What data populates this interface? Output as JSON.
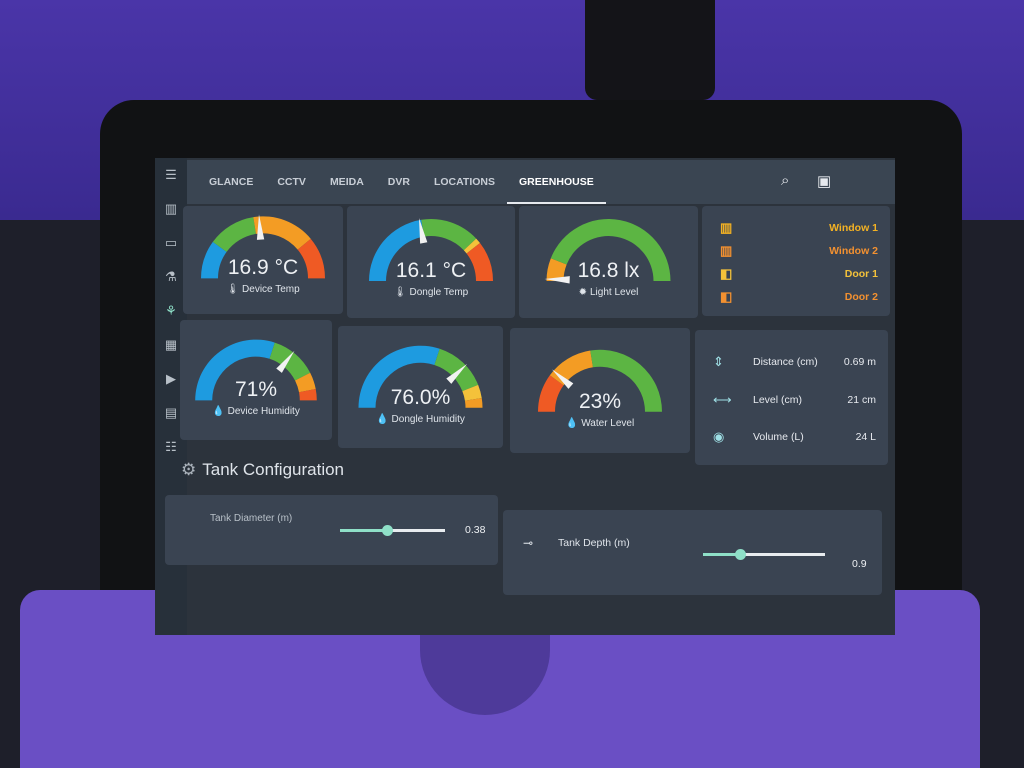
{
  "header": {
    "tabs": [
      "GLANCE",
      "CCTV",
      "MEIDA",
      "DVR",
      "LOCATIONS",
      "GREENHOUSE"
    ],
    "active_tab": "GREENHOUSE"
  },
  "sidebar": {
    "icons": [
      "menu-icon",
      "chart-icon",
      "tablet-icon",
      "flask-icon",
      "lightbulb-icon",
      "calendar-icon",
      "media-icon",
      "clipboard-icon",
      "list-icon"
    ]
  },
  "colors": {
    "blue": "#1e9be0",
    "green": "#5cb543",
    "orange": "#f39c24",
    "red": "#ef5a24",
    "yellow": "#f4c23a"
  },
  "gauges": [
    {
      "value": "16.9 °C",
      "label": "Device Temp",
      "icon": "🌡",
      "needle": 0.48,
      "segments": [
        [
          0,
          0.2,
          "#1e9be0"
        ],
        [
          0.2,
          0.45,
          "#5cb543"
        ],
        [
          0.45,
          0.78,
          "#f39c24"
        ],
        [
          0.78,
          1,
          "#ef5a24"
        ]
      ]
    },
    {
      "value": "16.1 °C",
      "label": "Dongle Temp",
      "icon": "🌡",
      "needle": 0.44,
      "segments": [
        [
          0,
          0.45,
          "#1e9be0"
        ],
        [
          0.45,
          0.76,
          "#5cb543"
        ],
        [
          0.76,
          0.79,
          "#f4c23a"
        ],
        [
          0.79,
          1,
          "#ef5a24"
        ]
      ]
    },
    {
      "value": "16.8 lx",
      "label": "Light Level",
      "icon": "✹",
      "needle": 0.01,
      "segments": [
        [
          0,
          0.12,
          "#f39c24"
        ],
        [
          0.12,
          1,
          "#5cb543"
        ]
      ]
    },
    {
      "value": "71%",
      "label": "Device Humidity",
      "icon": "💧",
      "needle": 0.71,
      "segments": [
        [
          0,
          0.6,
          "#1e9be0"
        ],
        [
          0.6,
          0.85,
          "#5cb543"
        ],
        [
          0.85,
          0.94,
          "#f39c24"
        ],
        [
          0.94,
          1,
          "#ef5a24"
        ]
      ]
    },
    {
      "value": "76.0%",
      "label": "Dongle Humidity",
      "icon": "💧",
      "needle": 0.76,
      "segments": [
        [
          0,
          0.6,
          "#1e9be0"
        ],
        [
          0.6,
          0.88,
          "#5cb543"
        ],
        [
          0.88,
          0.95,
          "#f4c23a"
        ],
        [
          0.95,
          1,
          "#f39c24"
        ]
      ]
    },
    {
      "value": "23%",
      "label": "Water Level",
      "icon": "💧",
      "needle": 0.23,
      "segments": [
        [
          0,
          0.2,
          "#ef5a24"
        ],
        [
          0.2,
          0.45,
          "#f39c24"
        ],
        [
          0.45,
          1,
          "#5cb543"
        ]
      ]
    }
  ],
  "openings": [
    {
      "label": "Window 1",
      "icon": "window-icon",
      "color": "#f4b223"
    },
    {
      "label": "Window 2",
      "icon": "window-icon",
      "color": "#f39130"
    },
    {
      "label": "Door 1",
      "icon": "door-icon",
      "color": "#f4c23a"
    },
    {
      "label": "Door 2",
      "icon": "door-icon",
      "color": "#f39130"
    }
  ],
  "entities": [
    {
      "label": "Distance (cm)",
      "value": "0.69 m",
      "icon": "⇕"
    },
    {
      "label": "Level (cm)",
      "value": "21 cm",
      "icon": "⟷"
    },
    {
      "label": "Volume (L)",
      "value": "24 L",
      "icon": "◉"
    }
  ],
  "tank": {
    "title": "Tank Configuration",
    "diameter": {
      "label": "Tank Diameter (m)",
      "value": "0.38",
      "fraction": 0.45
    },
    "depth": {
      "label": "Tank Depth (m)",
      "value": "0.9",
      "fraction": 0.3
    }
  }
}
